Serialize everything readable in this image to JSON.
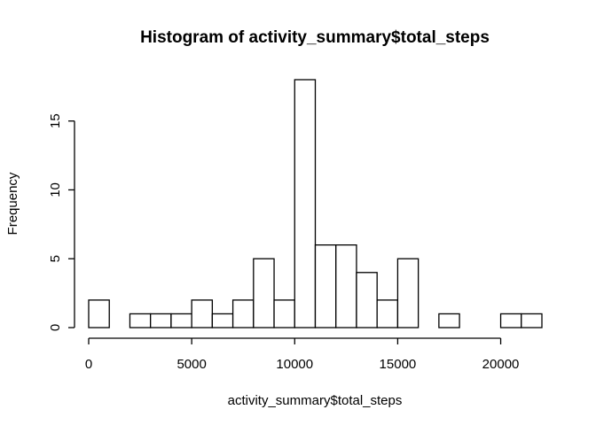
{
  "chart_data": {
    "type": "bar",
    "title": "Histogram of activity_summary$total_steps",
    "xlabel": "activity_summary$total_steps",
    "ylabel": "Frequency",
    "bin_width": 1000,
    "bin_starts": [
      0,
      1000,
      2000,
      3000,
      4000,
      5000,
      6000,
      7000,
      8000,
      9000,
      10000,
      11000,
      12000,
      13000,
      14000,
      15000,
      16000,
      17000,
      18000,
      19000,
      20000,
      21000
    ],
    "values": [
      2,
      0,
      1,
      1,
      1,
      2,
      1,
      2,
      5,
      2,
      18,
      6,
      6,
      4,
      2,
      5,
      0,
      1,
      0,
      0,
      1,
      1
    ],
    "xlim": [
      0,
      22000
    ],
    "ylim": [
      0,
      18
    ],
    "xticks": [
      0,
      5000,
      10000,
      15000,
      20000
    ],
    "yticks": [
      0,
      5,
      10,
      15
    ],
    "bar_fill": "#ffffff",
    "bar_stroke": "#000000",
    "grid": false
  }
}
